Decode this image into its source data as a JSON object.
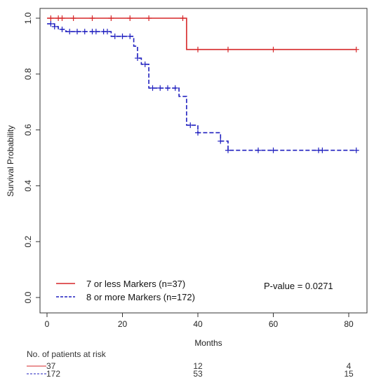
{
  "chart_data": {
    "type": "line",
    "xlabel": "Months",
    "ylabel": "Survival Probability",
    "xlim": [
      0,
      85
    ],
    "ylim": [
      0,
      1.02
    ],
    "x_ticks": [
      "0",
      "20",
      "40",
      "60",
      "80"
    ],
    "y_ticks": [
      "0.0",
      "0.2",
      "0.4",
      "0.6",
      "0.8",
      "1.0"
    ],
    "grid": false,
    "legend_position": "bottom-left",
    "annotation": "P-value = 0.0271",
    "series": [
      {
        "name": "7 or less Markers (n=37)",
        "color": "#d62728",
        "line_style": "solid",
        "steps": [
          [
            0,
            1.0
          ],
          [
            37,
            1.0
          ],
          [
            37,
            0.888
          ],
          [
            82,
            0.888
          ]
        ],
        "censor_times": [
          1,
          3,
          4,
          7,
          12,
          17,
          22,
          27,
          36,
          40,
          48,
          60,
          82
        ],
        "censor_values": [
          1.0,
          1.0,
          1.0,
          1.0,
          1.0,
          1.0,
          1.0,
          1.0,
          1.0,
          0.888,
          0.888,
          0.888,
          0.888
        ]
      },
      {
        "name": "8 or more Markers (n=172)",
        "color": "#1f1fbf",
        "line_style": "dashed",
        "steps": [
          [
            0,
            0.98
          ],
          [
            2,
            0.98
          ],
          [
            2,
            0.97
          ],
          [
            3,
            0.97
          ],
          [
            3,
            0.96
          ],
          [
            5,
            0.96
          ],
          [
            5,
            0.952
          ],
          [
            17,
            0.952
          ],
          [
            17,
            0.935
          ],
          [
            23,
            0.935
          ],
          [
            23,
            0.9
          ],
          [
            24,
            0.9
          ],
          [
            24,
            0.857
          ],
          [
            25,
            0.857
          ],
          [
            25,
            0.835
          ],
          [
            27,
            0.835
          ],
          [
            27,
            0.75
          ],
          [
            35,
            0.75
          ],
          [
            35,
            0.72
          ],
          [
            37,
            0.72
          ],
          [
            37,
            0.617
          ],
          [
            40,
            0.617
          ],
          [
            40,
            0.59
          ],
          [
            46,
            0.59
          ],
          [
            46,
            0.56
          ],
          [
            48,
            0.56
          ],
          [
            48,
            0.527
          ],
          [
            82,
            0.527
          ]
        ],
        "censor_times": [
          1,
          2,
          4,
          6,
          8,
          10,
          12,
          13,
          15,
          16,
          18,
          20,
          22,
          24,
          26,
          28,
          30,
          32,
          34,
          38,
          40,
          46,
          48,
          56,
          60,
          72,
          73,
          82
        ],
        "censor_values": [
          0.98,
          0.97,
          0.96,
          0.952,
          0.952,
          0.952,
          0.952,
          0.952,
          0.952,
          0.952,
          0.935,
          0.935,
          0.935,
          0.857,
          0.835,
          0.75,
          0.75,
          0.75,
          0.75,
          0.617,
          0.59,
          0.56,
          0.527,
          0.527,
          0.527,
          0.527,
          0.527,
          0.527
        ]
      }
    ]
  },
  "risk_table": {
    "title": "No. of patients at risk",
    "rows": [
      {
        "color": "#d62728",
        "line_style": "solid",
        "times": [
          0,
          40,
          80
        ],
        "counts": [
          "37",
          "12",
          "4"
        ]
      },
      {
        "color": "#1f1fbf",
        "line_style": "dashed",
        "times": [
          0,
          40,
          80
        ],
        "counts": [
          "172",
          "53",
          "15"
        ]
      }
    ]
  }
}
